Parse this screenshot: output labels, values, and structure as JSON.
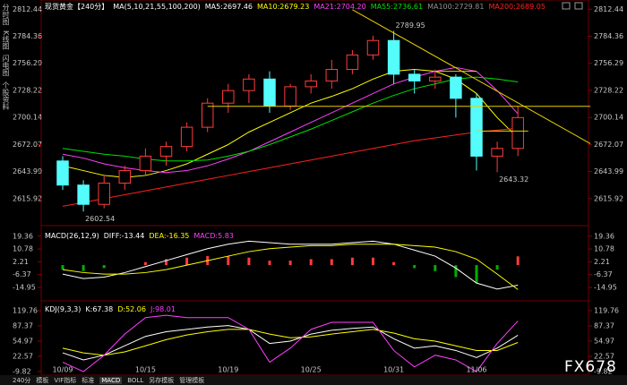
{
  "side_tabs": [
    "分时图",
    "K线图",
    "闪电图",
    "个股资料"
  ],
  "toolbar": [
    "240分",
    "模板",
    "VIF指标",
    "标准",
    "MACD",
    "BOLL",
    "另存模板",
    "管理模板"
  ],
  "active_tool": 4,
  "logo": "FX678",
  "chart_data": [
    {
      "type": "candlestick",
      "title": "现货黄金【240分】",
      "indicator_label": "MA(5,10,21,55,100,200)",
      "readouts": [
        {
          "text": "MA5:2697.46",
          "color": "#ffffff"
        },
        {
          "text": "MA10:2679.23",
          "color": "#ffff00"
        },
        {
          "text": "MA21:2704.20",
          "color": "#ff40ff"
        },
        {
          "text": "MA55:2736.61",
          "color": "#00e000"
        },
        {
          "text": "MA100:2729.81",
          "color": "#909090"
        },
        {
          "text": "MA200:2689.05",
          "color": "#ff2020"
        }
      ],
      "open": [
        2655,
        2630,
        2610,
        2632,
        2645,
        2660,
        2670,
        2690,
        2715,
        2728,
        2740,
        2712,
        2732,
        2738,
        2750,
        2765,
        2780,
        2745,
        2738,
        2742,
        2720,
        2660,
        2668
      ],
      "high": [
        2660,
        2635,
        2640,
        2650,
        2668,
        2675,
        2695,
        2720,
        2735,
        2745,
        2748,
        2735,
        2745,
        2760,
        2770,
        2785,
        2789.95,
        2750,
        2750,
        2745,
        2725,
        2675,
        2712
      ],
      "low": [
        2625,
        2602.54,
        2606,
        2625,
        2640,
        2650,
        2665,
        2685,
        2705,
        2715,
        2705,
        2708,
        2725,
        2730,
        2745,
        2760,
        2735,
        2725,
        2730,
        2700,
        2645,
        2643.32,
        2660
      ],
      "close": [
        2630,
        2610,
        2632,
        2645,
        2660,
        2670,
        2690,
        2715,
        2728,
        2740,
        2712,
        2732,
        2738,
        2750,
        2765,
        2780,
        2745,
        2738,
        2742,
        2720,
        2660,
        2668,
        2700
      ],
      "up_color": "#ff3c3c",
      "down_color": "#54fcfc",
      "series": [
        {
          "color": "#ffff00",
          "values": [
            2650,
            2645,
            2640,
            2638,
            2640,
            2645,
            2652,
            2662,
            2672,
            2685,
            2695,
            2705,
            2715,
            2722,
            2730,
            2740,
            2748,
            2750,
            2748,
            2740,
            2725,
            2700,
            2679
          ]
        },
        {
          "color": "#ff40ff",
          "values": [
            2662,
            2658,
            2652,
            2648,
            2645,
            2643,
            2645,
            2650,
            2657,
            2665,
            2675,
            2685,
            2695,
            2705,
            2715,
            2725,
            2735,
            2742,
            2748,
            2752,
            2748,
            2728,
            2704
          ]
        },
        {
          "color": "#00e000",
          "values": [
            2668,
            2665,
            2662,
            2660,
            2657,
            2655,
            2655,
            2656,
            2660,
            2665,
            2672,
            2680,
            2688,
            2697,
            2706,
            2715,
            2723,
            2730,
            2735,
            2740,
            2742,
            2740,
            2737
          ]
        },
        {
          "color": "#ff2020",
          "values": [
            2608,
            2612,
            2616,
            2620,
            2624,
            2628,
            2632,
            2636,
            2640,
            2644,
            2648,
            2652,
            2656,
            2660,
            2664,
            2668,
            2672,
            2676,
            2679,
            2682,
            2685,
            2687,
            2689
          ]
        }
      ],
      "trend_lines": [
        {
          "color": "#e8d000",
          "x": [
            14,
            25.5
          ],
          "y": [
            2812,
            2673
          ]
        },
        {
          "color": "#e8d000",
          "x": [
            7,
            25.5
          ],
          "y": [
            2711.7,
            2711.7
          ]
        },
        {
          "color": "#e8d000",
          "x": [
            18,
            20
          ],
          "y": [
            2748,
            2748
          ]
        },
        {
          "color": "#e8d000",
          "x": [
            20,
            22.5
          ],
          "y": [
            2686,
            2686
          ]
        }
      ],
      "extremes": [
        {
          "index": 16,
          "value": 2789.95,
          "position": "above"
        },
        {
          "index": 21,
          "value": 2643.32,
          "position": "below"
        },
        {
          "index": 1,
          "value": 2602.54,
          "position": "below"
        }
      ],
      "ylim": [
        2600,
        2822
      ],
      "yticks": [
        2812.44,
        2784.36,
        2756.29,
        2728.22,
        2700.14,
        2672.07,
        2643.99,
        2615.92
      ]
    },
    {
      "type": "macd",
      "indicator_label": "MACD(26,12,9)",
      "readouts": [
        {
          "text": "DIFF:-13.44",
          "color": "#ffffff"
        },
        {
          "text": "DEA:-16.35",
          "color": "#ffff00"
        },
        {
          "text": "MACD:5.83",
          "color": "#ff40ff"
        }
      ],
      "values": [
        -3,
        -4,
        -2,
        0,
        2,
        4,
        5,
        6,
        6,
        5,
        3,
        3,
        4,
        4,
        5,
        5,
        2,
        -2,
        -4,
        -8,
        -12,
        -3,
        5.83
      ],
      "up_color": "#ff3c3c",
      "down_color": "#00b000",
      "series": [
        {
          "color": "#ffffff",
          "values": [
            -6,
            -9,
            -8,
            -5,
            -1,
            3,
            7,
            11,
            14,
            16,
            15,
            14,
            14,
            14,
            15,
            16,
            14,
            10,
            6,
            -2,
            -12,
            -16,
            -13.44
          ]
        },
        {
          "color": "#ffff00",
          "values": [
            -3,
            -5,
            -6,
            -6,
            -5,
            -3,
            0,
            3,
            6,
            9,
            11,
            12,
            13,
            13,
            14,
            14,
            14,
            13,
            12,
            9,
            4,
            -6,
            -16.35
          ]
        }
      ],
      "ylim": [
        -21.5,
        24
      ],
      "yticks": [
        19.36,
        10.78,
        2.21,
        -6.37,
        -14.95
      ]
    },
    {
      "type": "kdj",
      "indicator_label": "KDJ(9,3,3)",
      "readouts": [
        {
          "text": "K:67.38",
          "color": "#ffffff"
        },
        {
          "text": "D:52.06",
          "color": "#ffff00"
        },
        {
          "text": "J:98.01",
          "color": "#ff40ff"
        }
      ],
      "categories": [
        "10/09",
        null,
        null,
        null,
        "10/15",
        null,
        null,
        null,
        "10/19",
        null,
        null,
        null,
        "10/25",
        null,
        null,
        null,
        "10/31",
        null,
        null,
        null,
        "11/06",
        null,
        null
      ],
      "series": [
        {
          "color": "#ffffff",
          "values": [
            30,
            15,
            25,
            45,
            65,
            75,
            80,
            85,
            88,
            80,
            50,
            55,
            70,
            78,
            82,
            85,
            60,
            40,
            45,
            35,
            20,
            40,
            67.38
          ]
        },
        {
          "color": "#ffff00",
          "values": [
            40,
            30,
            25,
            32,
            45,
            58,
            68,
            75,
            80,
            80,
            70,
            62,
            64,
            70,
            75,
            80,
            72,
            60,
            55,
            45,
            35,
            35,
            52.06
          ]
        },
        {
          "color": "#ff40ff",
          "values": [
            10,
            -10,
            25,
            70,
            105,
            110,
            105,
            105,
            105,
            80,
            10,
            40,
            80,
            95,
            95,
            95,
            35,
            0,
            25,
            15,
            -10,
            50,
            98.01
          ]
        }
      ],
      "ylim": [
        -19.4,
        136.9
      ],
      "yticks": [
        119.76,
        87.37,
        54.97,
        22.57,
        -9.82
      ]
    }
  ]
}
